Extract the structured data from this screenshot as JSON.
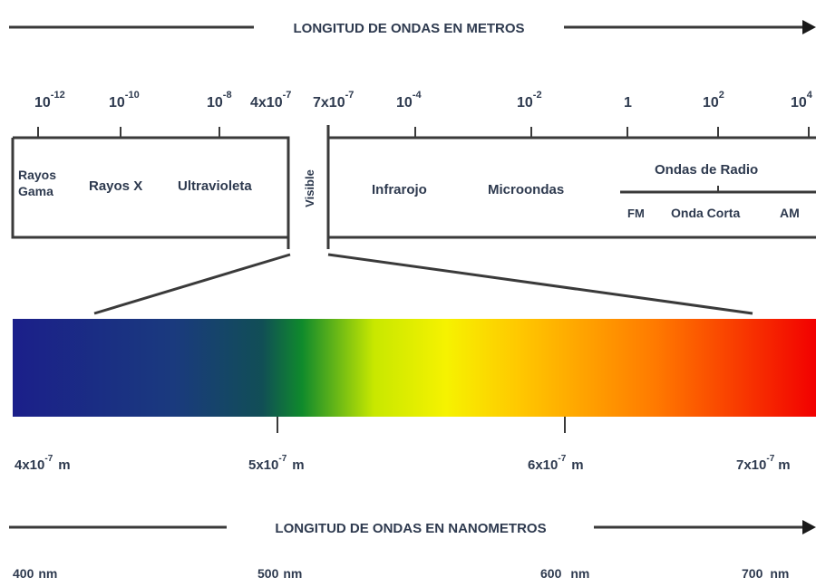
{
  "top_axis": {
    "title": "LONGITUD DE ONDAS EN METROS",
    "ticks": [
      {
        "base": "10",
        "exp": "-12"
      },
      {
        "base": "10",
        "exp": "-10"
      },
      {
        "base": "10",
        "exp": "-8"
      },
      {
        "base": "4x10",
        "exp": "-7"
      },
      {
        "base": "7x10",
        "exp": "-7"
      },
      {
        "base": "10",
        "exp": "-4"
      },
      {
        "base": "10",
        "exp": "-2"
      },
      {
        "base": "1",
        "exp": ""
      },
      {
        "base": "10",
        "exp": "2"
      },
      {
        "base": "10",
        "exp": "4"
      }
    ]
  },
  "regions": {
    "gamma": [
      "Rayos",
      "Gama"
    ],
    "xray": "Rayos X",
    "uv": "Ultravioleta",
    "visible": "Visible",
    "ir": "Infrarojo",
    "micro": "Microondas",
    "radio": "Ondas de Radio",
    "fm": "FM",
    "short": "Onda Corta",
    "am": "AM"
  },
  "spectrum_scale": {
    "ticks": [
      {
        "base": "4x10",
        "exp": "-7",
        "unit": "m"
      },
      {
        "base": "5x10",
        "exp": "-7",
        "unit": "m"
      },
      {
        "base": "6x10",
        "exp": "-7",
        "unit": "m"
      },
      {
        "base": "7x10",
        "exp": "-7",
        "unit": "m"
      }
    ]
  },
  "bottom_axis": {
    "title": "LONGITUD DE ONDAS EN NANOMETROS",
    "labels": [
      {
        "value": "400",
        "unit": "nm"
      },
      {
        "value": "500",
        "unit": "nm"
      },
      {
        "value": "600",
        "unit": "nm"
      },
      {
        "value": "700",
        "unit": "nm"
      }
    ]
  },
  "colors": {
    "text": "#2e3a4f",
    "spectrum": [
      "#1b1f8a",
      "#123a6e",
      "#0f7a2c",
      "#f2f200",
      "#ff8a00",
      "#f20000"
    ]
  }
}
